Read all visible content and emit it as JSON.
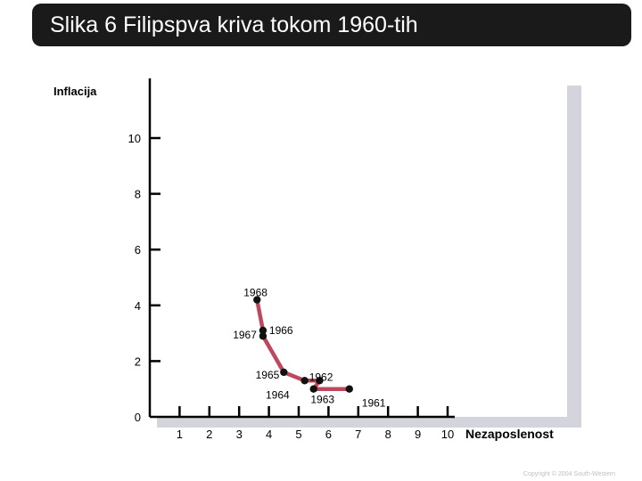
{
  "header": {
    "title": "Slika 6 Filipspva kriva tokom 1960-tih"
  },
  "footer": {
    "copyright": "Copyright © 2004 South-Western"
  },
  "chart_data": {
    "type": "line",
    "ylabel": "Inflacija",
    "xlabel": "Nezaposlenost",
    "xlim": [
      0,
      10
    ],
    "ylim": [
      0,
      10
    ],
    "x_ticks": [
      1,
      2,
      3,
      4,
      5,
      6,
      7,
      8,
      9,
      10
    ],
    "y_ticks": [
      0,
      2,
      4,
      6,
      8,
      10
    ],
    "grid": false,
    "line_color": "#c0485e",
    "marker_color": "#111111",
    "points": [
      {
        "label": "1961",
        "x": 6.7,
        "y": 1.0
      },
      {
        "label": "1962",
        "x": 5.5,
        "y": 1.0
      },
      {
        "label": "1963",
        "x": 5.7,
        "y": 1.3
      },
      {
        "label": "1964",
        "x": 5.2,
        "y": 1.3
      },
      {
        "label": "1965",
        "x": 4.5,
        "y": 1.6
      },
      {
        "label": "1966",
        "x": 3.8,
        "y": 2.9
      },
      {
        "label": "1967",
        "x": 3.8,
        "y": 3.1
      },
      {
        "label": "1968",
        "x": 3.6,
        "y": 4.2
      }
    ]
  }
}
